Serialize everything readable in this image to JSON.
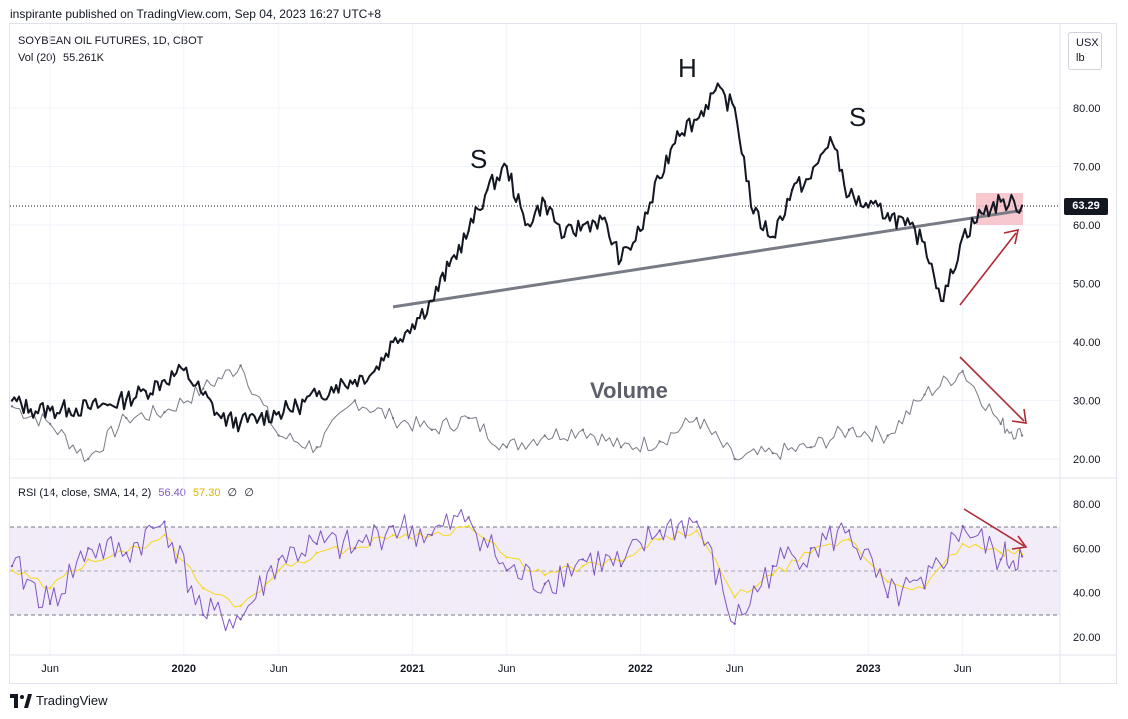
{
  "header": {
    "published_line": "inspirante published on TradingView.com, Sep 04, 2023 16:27 UTC+8"
  },
  "legend": {
    "symbol": "SOYBEAN OIL FUTURES, 1D, CBOT",
    "vol_label": "Vol (20)",
    "vol_value": "55.261K"
  },
  "unit": {
    "line1": "USX",
    "line2": "lb"
  },
  "last_price": "63.29",
  "rsi_legend": {
    "label": "RSI (14, close, SMA, 14, 2)",
    "rsi_value": "56.40",
    "sma_value": "57.30",
    "extra1": "∅",
    "extra2": "∅"
  },
  "annotations": {
    "left_shoulder": "S",
    "head": "H",
    "right_shoulder": "S",
    "volume": "Volume"
  },
  "footer": {
    "brand": "TradingView"
  },
  "colors": {
    "price": "#131722",
    "volume_ma": "#787b86",
    "neckline": "#787b86",
    "rsi": "#7e57c2",
    "rsi_sma": "#f7d81a",
    "rsi_band": "#7e57c2",
    "arrow": "#b22833",
    "highlight": "#f4b6be"
  },
  "chart_data": [
    {
      "type": "line",
      "title": "SOYBEAN OIL FUTURES, 1D, CBOT",
      "series": [
        {
          "name": "SOYBEAN OIL FUTURES",
          "x": [
            "2019-04-01",
            "2019-05-01",
            "2019-06-01",
            "2019-07-01",
            "2019-08-01",
            "2019-09-01",
            "2019-10-01",
            "2019-11-01",
            "2019-12-01",
            "2020-01-01",
            "2020-02-01",
            "2020-03-01",
            "2020-04-01",
            "2020-05-01",
            "2020-06-01",
            "2020-07-01",
            "2020-08-01",
            "2020-09-01",
            "2020-10-01",
            "2020-11-01",
            "2020-12-01",
            "2021-01-01",
            "2021-02-01",
            "2021-03-01",
            "2021-04-01",
            "2021-05-01",
            "2021-06-01",
            "2021-07-01",
            "2021-08-01",
            "2021-09-01",
            "2021-10-01",
            "2021-11-01",
            "2021-12-01",
            "2022-01-01",
            "2022-02-01",
            "2022-03-01",
            "2022-04-01",
            "2022-05-01",
            "2022-06-01",
            "2022-07-01",
            "2022-08-01",
            "2022-09-01",
            "2022-10-01",
            "2022-11-01",
            "2022-12-01",
            "2023-01-01",
            "2023-02-01",
            "2023-03-01",
            "2023-04-01",
            "2023-05-01",
            "2023-06-01",
            "2023-07-01",
            "2023-08-01",
            "2023-09-04"
          ],
          "values": [
            30.0,
            28.5,
            28.3,
            28.6,
            28.8,
            29.2,
            30.2,
            31.6,
            33.5,
            35.2,
            31.0,
            27.0,
            26.2,
            27.0,
            28.0,
            29.0,
            30.8,
            32.6,
            33.5,
            35.0,
            40.0,
            43.0,
            47.0,
            53.0,
            59.0,
            66.0,
            70.0,
            60.0,
            64.0,
            58.0,
            60.0,
            61.0,
            54.0,
            59.0,
            68.0,
            76.0,
            78.0,
            83.0,
            80.0,
            62.0,
            58.0,
            66.0,
            68.0,
            75.0,
            65.0,
            63.0,
            62.0,
            60.0,
            57.0,
            47.0,
            58.0,
            62.0,
            64.0,
            63.29
          ]
        },
        {
          "name": "Vol (20)",
          "x": [
            "2019-04-01",
            "2019-06-01",
            "2019-08-01",
            "2019-10-01",
            "2019-12-01",
            "2020-02-01",
            "2020-04-01",
            "2020-06-01",
            "2020-08-01",
            "2020-10-01",
            "2020-12-01",
            "2021-02-01",
            "2021-04-01",
            "2021-06-01",
            "2021-08-01",
            "2021-10-01",
            "2021-12-01",
            "2022-02-01",
            "2022-04-01",
            "2022-06-01",
            "2022-08-01",
            "2022-10-01",
            "2022-12-01",
            "2023-02-01",
            "2023-04-01",
            "2023-06-01",
            "2023-08-01",
            "2023-09-04"
          ],
          "values": [
            29,
            26,
            20,
            27,
            28,
            32,
            36,
            24,
            22,
            30,
            27,
            25,
            27,
            22,
            24,
            25,
            22,
            23,
            27,
            20,
            21,
            22,
            25,
            24,
            31,
            35,
            26,
            24
          ]
        }
      ],
      "ylim": [
        15,
        90
      ],
      "y_ticks": [
        "20.00",
        "30.00",
        "40.00",
        "50.00",
        "60.00",
        "70.00",
        "80.00"
      ],
      "x_ticks": [
        "Jun",
        "2020",
        "Jun",
        "2021",
        "Jun",
        "2022",
        "Jun",
        "2023",
        "Jun"
      ],
      "neckline": {
        "x": [
          "2020-12-01",
          "2023-09-04"
        ],
        "values": [
          46.0,
          62.5
        ]
      }
    },
    {
      "type": "line",
      "title": "RSI (14, close, SMA, 14, 2)",
      "series": [
        {
          "name": "RSI",
          "x": [
            "2019-04-01",
            "2019-06-01",
            "2019-08-01",
            "2019-10-01",
            "2019-12-01",
            "2020-02-01",
            "2020-04-01",
            "2020-06-01",
            "2020-08-01",
            "2020-10-01",
            "2020-12-01",
            "2021-02-01",
            "2021-04-01",
            "2021-06-01",
            "2021-08-01",
            "2021-10-01",
            "2021-12-01",
            "2022-02-01",
            "2022-04-01",
            "2022-06-01",
            "2022-08-01",
            "2022-10-01",
            "2022-12-01",
            "2023-02-01",
            "2023-04-01",
            "2023-06-01",
            "2023-08-01",
            "2023-09-04"
          ],
          "values": [
            52,
            35,
            60,
            58,
            72,
            30,
            28,
            55,
            62,
            60,
            70,
            66,
            74,
            50,
            44,
            55,
            52,
            68,
            72,
            26,
            52,
            60,
            68,
            38,
            42,
            70,
            55,
            56.4
          ]
        },
        {
          "name": "RSI-based MA",
          "x": [
            "2019-04-01",
            "2019-06-01",
            "2019-08-01",
            "2019-10-01",
            "2019-12-01",
            "2020-02-01",
            "2020-04-01",
            "2020-06-01",
            "2020-08-01",
            "2020-10-01",
            "2020-12-01",
            "2021-02-01",
            "2021-04-01",
            "2021-06-01",
            "2021-08-01",
            "2021-10-01",
            "2021-12-01",
            "2022-02-01",
            "2022-04-01",
            "2022-06-01",
            "2022-08-01",
            "2022-10-01",
            "2022-12-01",
            "2023-02-01",
            "2023-04-01",
            "2023-06-01",
            "2023-08-01",
            "2023-09-04"
          ],
          "values": [
            50,
            42,
            55,
            58,
            66,
            42,
            34,
            50,
            58,
            60,
            66,
            66,
            70,
            56,
            48,
            52,
            54,
            64,
            68,
            38,
            48,
            58,
            64,
            45,
            42,
            62,
            58,
            57.3
          ]
        }
      ],
      "ylim": [
        15,
        85
      ],
      "y_ticks": [
        "20.00",
        "40.00",
        "60.00",
        "80.00"
      ],
      "bands": [
        70,
        50,
        30
      ]
    }
  ]
}
